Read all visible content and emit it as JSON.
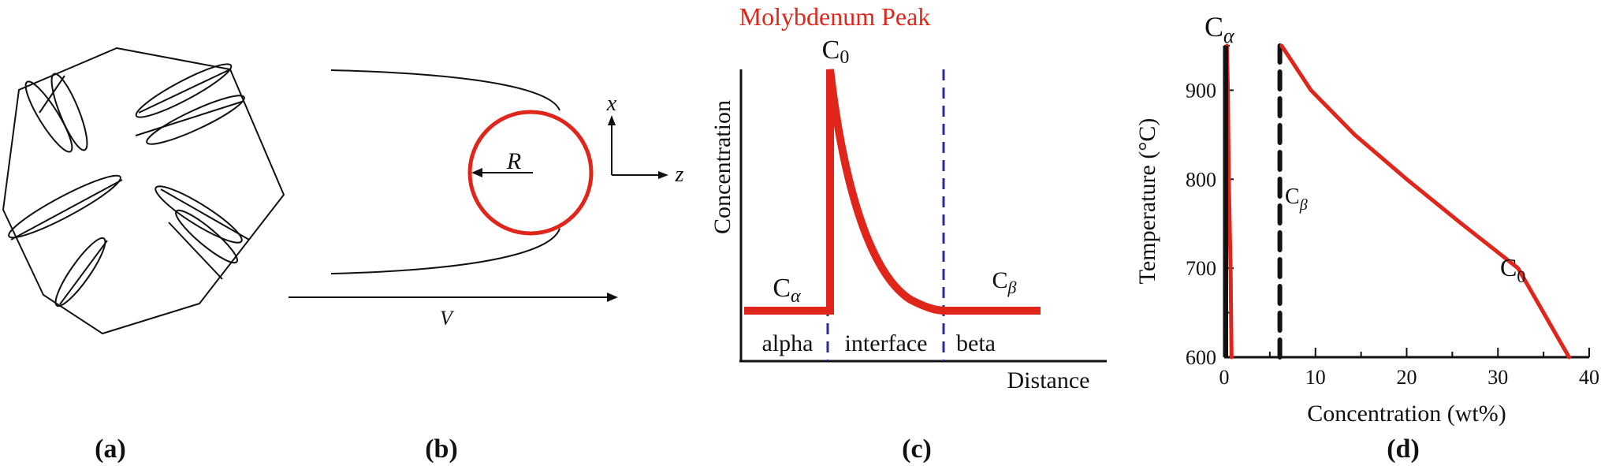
{
  "panels": [
    {
      "id": "a",
      "label": "(a)"
    },
    {
      "id": "b",
      "label": "(b)",
      "radius_label": "R",
      "axis_x": "x",
      "axis_z": "z",
      "velocity_label": "V"
    },
    {
      "id": "c",
      "label": "(c)",
      "title": "Molybdenum Peak",
      "c0": "C",
      "c0_sub": "0",
      "calpha": "C",
      "calpha_sub": "α",
      "cbeta": "C",
      "cbeta_sub": "β",
      "ylabel": "Concentration",
      "xlabel": "Distance",
      "region_alpha": "alpha",
      "region_interface": "interface",
      "region_beta": "beta"
    },
    {
      "id": "d",
      "label": "(d)"
    }
  ],
  "colors": {
    "accent": "#e0261b",
    "dashed_blue": "#2a2aa0",
    "line": "#111111"
  },
  "chart_data": {
    "type": "line",
    "xlabel": "Concentration (wt%)",
    "ylabel": "Temperature (°C)",
    "xlim": [
      0,
      40
    ],
    "ylim": [
      600,
      950
    ],
    "x_ticks": [
      0,
      10,
      20,
      30,
      40
    ],
    "y_ticks": [
      600,
      700,
      800,
      900
    ],
    "grid": false,
    "series": [
      {
        "name": "C",
        "name_sub": "α",
        "style": "solid-red",
        "x": [
          0.8,
          0.7,
          0.5,
          0.4,
          0.3
        ],
        "y": [
          600,
          700,
          800,
          900,
          950
        ]
      },
      {
        "name": "C",
        "name_sub": "β",
        "style": "dashed-black",
        "x": [
          6.1,
          6.1
        ],
        "y": [
          600,
          950
        ]
      },
      {
        "name": "C",
        "name_sub": "0",
        "style": "solid-red",
        "x": [
          6.3,
          9.5,
          14.3,
          20.0,
          26.0,
          32.2,
          37.8
        ],
        "y": [
          950,
          900,
          850,
          800,
          750,
          700,
          600
        ]
      }
    ]
  }
}
